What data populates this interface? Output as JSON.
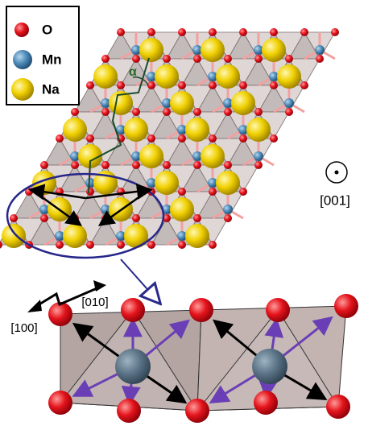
{
  "legend": [
    {
      "label": "O"
    },
    {
      "label": "Mn"
    },
    {
      "label": "Na"
    }
  ],
  "annotations": {
    "angle": "α",
    "axis_out": "[001]",
    "axis_b": "[010]",
    "axis_a": "[100]"
  }
}
